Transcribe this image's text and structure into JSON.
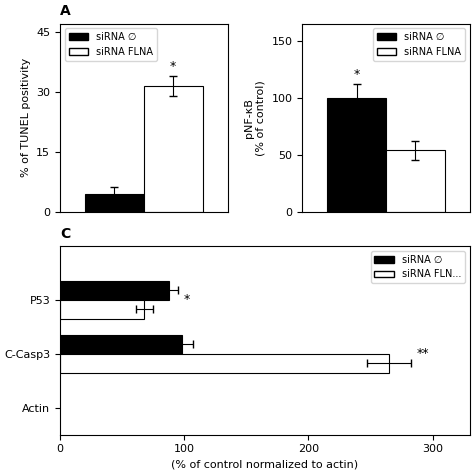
{
  "chart_data": [
    {
      "type": "bar",
      "title": "A",
      "categories": [
        null
      ],
      "series": [
        {
          "name": "siRNA ∅",
          "color": "#000000",
          "values": [
            4.5
          ],
          "errors": [
            1.8
          ]
        },
        {
          "name": "siRNA FLNA",
          "color": "#ffffff",
          "values": [
            31.5
          ],
          "errors": [
            2.5
          ]
        }
      ],
      "ylabel": "% of TUNEL positivity",
      "ylim": [
        0,
        47
      ],
      "yticks": [
        0,
        15,
        30,
        45
      ],
      "annotations": [
        "*"
      ],
      "legend": "upper left",
      "tick_labels": "y"
    },
    {
      "type": "bar",
      "categories": [
        null
      ],
      "series": [
        {
          "name": "siRNA ∅",
          "color": "#000000",
          "values": [
            100
          ],
          "errors": [
            12
          ]
        },
        {
          "name": "siRNA FLNA",
          "color": "#ffffff",
          "values": [
            54
          ],
          "errors": [
            8
          ]
        }
      ],
      "ylabel": "pNF-κB\n(% of control)",
      "ylim": [
        0,
        165
      ],
      "yticks": [
        0,
        50,
        100,
        150
      ],
      "annotations": [
        "*"
      ],
      "legend": "upper right",
      "tick_labels": "y"
    },
    {
      "type": "bar",
      "title": "C",
      "orientation": "horizontal",
      "categories": [
        "P53",
        "C-Casp3",
        "Actin"
      ],
      "series": [
        {
          "name": "siRNA ∅",
          "color": "#000000",
          "values": [
            88,
            98,
            null
          ],
          "errors": [
            7,
            9,
            null
          ]
        },
        {
          "name": "siRNA FLN...",
          "color": "#ffffff",
          "values": [
            68,
            265,
            null
          ],
          "errors": [
            7,
            18,
            null
          ]
        }
      ],
      "xlabel": "(% of control normalized to actin)",
      "xlim": [
        0,
        330
      ],
      "xticks": [
        0,
        100,
        200,
        300
      ],
      "annotations": [
        "*",
        "**",
        null
      ],
      "legend": "upper right"
    }
  ]
}
